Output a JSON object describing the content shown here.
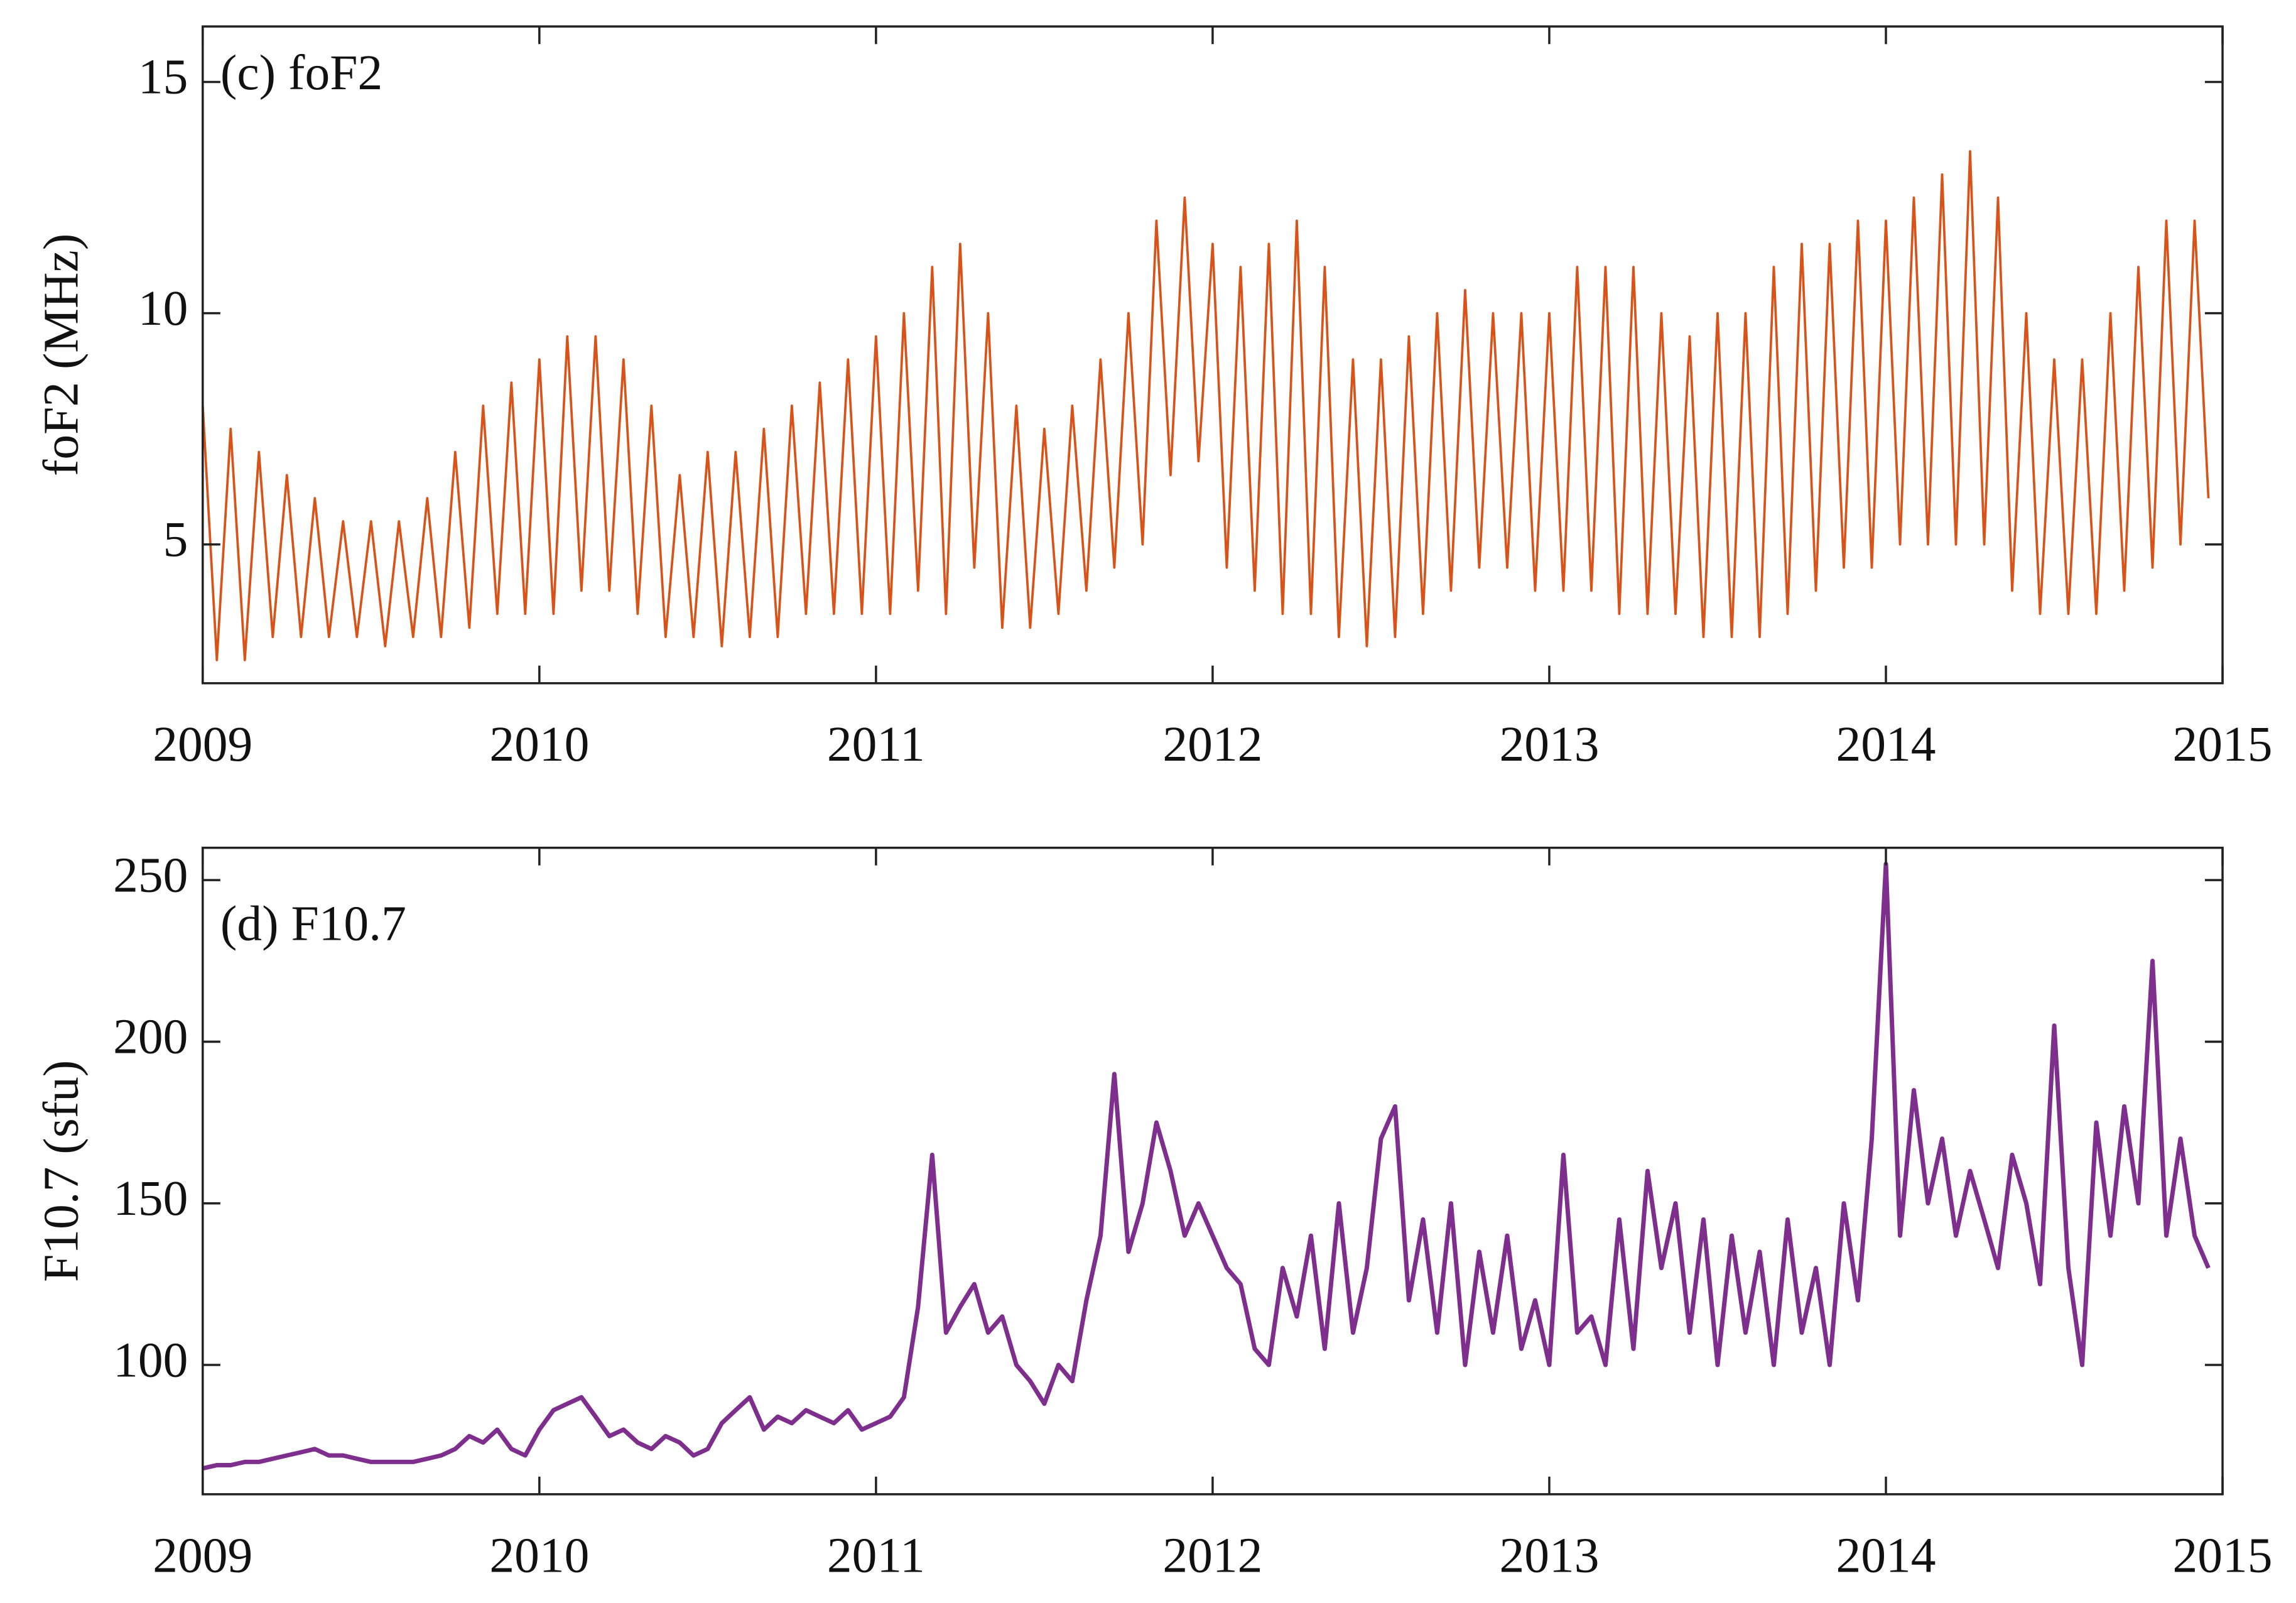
{
  "charts": [
    {
      "chart_data": {
        "type": "line",
        "title": "(c) foF2",
        "ylabel": "foF2 (MHz)",
        "color": "#d95319",
        "x": [
          2009,
          2009.042,
          2009.083,
          2009.125,
          2009.167,
          2009.208,
          2009.25,
          2009.292,
          2009.333,
          2009.375,
          2009.417,
          2009.458,
          2009.5,
          2009.542,
          2009.583,
          2009.625,
          2009.667,
          2009.708,
          2009.75,
          2009.792,
          2009.833,
          2009.875,
          2009.917,
          2009.958,
          2010,
          2010.042,
          2010.083,
          2010.125,
          2010.167,
          2010.208,
          2010.25,
          2010.292,
          2010.333,
          2010.375,
          2010.417,
          2010.458,
          2010.5,
          2010.542,
          2010.583,
          2010.625,
          2010.667,
          2010.708,
          2010.75,
          2010.792,
          2010.833,
          2010.875,
          2010.917,
          2010.958,
          2011,
          2011.042,
          2011.083,
          2011.125,
          2011.167,
          2011.208,
          2011.25,
          2011.292,
          2011.333,
          2011.375,
          2011.417,
          2011.458,
          2011.5,
          2011.542,
          2011.583,
          2011.625,
          2011.667,
          2011.708,
          2011.75,
          2011.792,
          2011.833,
          2011.875,
          2011.917,
          2011.958,
          2012,
          2012.042,
          2012.083,
          2012.125,
          2012.167,
          2012.208,
          2012.25,
          2012.292,
          2012.333,
          2012.375,
          2012.417,
          2012.458,
          2012.5,
          2012.542,
          2012.583,
          2012.625,
          2012.667,
          2012.708,
          2012.75,
          2012.792,
          2012.833,
          2012.875,
          2012.917,
          2012.958,
          2013,
          2013.042,
          2013.083,
          2013.125,
          2013.167,
          2013.208,
          2013.25,
          2013.292,
          2013.333,
          2013.375,
          2013.417,
          2013.458,
          2013.5,
          2013.542,
          2013.583,
          2013.625,
          2013.667,
          2013.708,
          2013.75,
          2013.792,
          2013.833,
          2013.875,
          2013.917,
          2013.958,
          2014,
          2014.042,
          2014.083,
          2014.125,
          2014.167,
          2014.208,
          2014.25,
          2014.292,
          2014.333,
          2014.375,
          2014.417,
          2014.458,
          2014.5,
          2014.542,
          2014.583,
          2014.625,
          2014.667,
          2014.708,
          2014.75,
          2014.792,
          2014.833,
          2014.875,
          2014.917,
          2014.958
        ],
        "values": [
          8,
          2.5,
          7.5,
          2.5,
          7,
          3,
          6.5,
          3,
          6,
          3,
          5.5,
          3,
          5.5,
          2.8,
          5.5,
          3,
          6,
          3,
          7,
          3.2,
          8,
          3.5,
          8.5,
          3.5,
          9,
          3.5,
          9.5,
          4,
          9.5,
          4,
          9,
          3.5,
          8,
          3,
          6.5,
          3,
          7,
          2.8,
          7,
          3,
          7.5,
          3,
          8,
          3.5,
          8.5,
          3.5,
          9,
          3.5,
          9.5,
          3.5,
          10,
          4,
          11,
          3.5,
          11.5,
          4.5,
          10,
          3.2,
          8,
          3.2,
          7.5,
          3.5,
          8,
          4,
          9,
          4.5,
          10,
          5,
          12,
          6.5,
          12.5,
          6.8,
          11.5,
          4.5,
          11,
          4,
          11.5,
          3.5,
          12,
          3.5,
          11,
          3,
          9,
          2.8,
          9,
          3,
          9.5,
          3.5,
          10,
          4,
          10.5,
          4.5,
          10,
          4.5,
          10,
          4,
          10,
          4,
          11,
          4,
          11,
          3.5,
          11,
          3.5,
          10,
          3.5,
          9.5,
          3,
          10,
          3,
          10,
          3,
          11,
          3.5,
          11.5,
          4,
          11.5,
          4.5,
          12,
          4.5,
          12,
          5,
          12.5,
          5,
          13,
          5,
          13.5,
          5,
          12.5,
          4,
          10,
          3.5,
          9,
          3.5,
          9,
          3.5,
          10,
          4,
          11,
          4.5,
          12,
          5,
          12,
          6
        ],
        "xlim": [
          2009,
          2015
        ],
        "xticks": [
          2009,
          2010,
          2011,
          2012,
          2013,
          2014,
          2015
        ],
        "ylim": [
          2,
          16.2
        ],
        "yticks": [
          5,
          10,
          15
        ]
      }
    },
    {
      "chart_data": {
        "type": "line",
        "title": "(d) F10.7",
        "ylabel": "F10.7 (sfu)",
        "color": "#7e2f8e",
        "x": [
          2009,
          2009.042,
          2009.083,
          2009.125,
          2009.167,
          2009.208,
          2009.25,
          2009.292,
          2009.333,
          2009.375,
          2009.417,
          2009.458,
          2009.5,
          2009.542,
          2009.583,
          2009.625,
          2009.667,
          2009.708,
          2009.75,
          2009.792,
          2009.833,
          2009.875,
          2009.917,
          2009.958,
          2010,
          2010.042,
          2010.083,
          2010.125,
          2010.167,
          2010.208,
          2010.25,
          2010.292,
          2010.333,
          2010.375,
          2010.417,
          2010.458,
          2010.5,
          2010.542,
          2010.583,
          2010.625,
          2010.667,
          2010.708,
          2010.75,
          2010.792,
          2010.833,
          2010.875,
          2010.917,
          2010.958,
          2011,
          2011.042,
          2011.083,
          2011.125,
          2011.167,
          2011.208,
          2011.25,
          2011.292,
          2011.333,
          2011.375,
          2011.417,
          2011.458,
          2011.5,
          2011.542,
          2011.583,
          2011.625,
          2011.667,
          2011.708,
          2011.75,
          2011.792,
          2011.833,
          2011.875,
          2011.917,
          2011.958,
          2012,
          2012.042,
          2012.083,
          2012.125,
          2012.167,
          2012.208,
          2012.25,
          2012.292,
          2012.333,
          2012.375,
          2012.417,
          2012.458,
          2012.5,
          2012.542,
          2012.583,
          2012.625,
          2012.667,
          2012.708,
          2012.75,
          2012.792,
          2012.833,
          2012.875,
          2012.917,
          2012.958,
          2013,
          2013.042,
          2013.083,
          2013.125,
          2013.167,
          2013.208,
          2013.25,
          2013.292,
          2013.333,
          2013.375,
          2013.417,
          2013.458,
          2013.5,
          2013.542,
          2013.583,
          2013.625,
          2013.667,
          2013.708,
          2013.75,
          2013.792,
          2013.833,
          2013.875,
          2013.917,
          2013.958,
          2014,
          2014.042,
          2014.083,
          2014.125,
          2014.167,
          2014.208,
          2014.25,
          2014.292,
          2014.333,
          2014.375,
          2014.417,
          2014.458,
          2014.5,
          2014.542,
          2014.583,
          2014.625,
          2014.667,
          2014.708,
          2014.75,
          2014.792,
          2014.833,
          2014.875,
          2014.917,
          2014.958
        ],
        "values": [
          68,
          69,
          69,
          70,
          70,
          71,
          72,
          73,
          74,
          72,
          72,
          71,
          70,
          70,
          70,
          70,
          71,
          72,
          74,
          78,
          76,
          80,
          74,
          72,
          80,
          86,
          88,
          90,
          84,
          78,
          80,
          76,
          74,
          78,
          76,
          72,
          74,
          82,
          86,
          90,
          80,
          84,
          82,
          86,
          84,
          82,
          86,
          80,
          82,
          84,
          90,
          118,
          165,
          110,
          118,
          125,
          110,
          115,
          100,
          95,
          88,
          100,
          95,
          120,
          140,
          190,
          135,
          150,
          175,
          160,
          140,
          150,
          140,
          130,
          125,
          105,
          100,
          130,
          115,
          140,
          105,
          150,
          110,
          130,
          170,
          180,
          120,
          145,
          110,
          150,
          100,
          135,
          110,
          140,
          105,
          120,
          100,
          165,
          110,
          115,
          100,
          145,
          105,
          160,
          130,
          150,
          110,
          145,
          100,
          140,
          110,
          135,
          100,
          145,
          110,
          130,
          100,
          150,
          120,
          170,
          255,
          140,
          185,
          150,
          170,
          140,
          160,
          145,
          130,
          165,
          150,
          125,
          205,
          130,
          100,
          175,
          140,
          180,
          150,
          225,
          140,
          170,
          140,
          130
        ],
        "xlim": [
          2009,
          2015
        ],
        "xticks": [
          2009,
          2010,
          2011,
          2012,
          2013,
          2014,
          2015
        ],
        "ylim": [
          60,
          260
        ],
        "yticks": [
          100,
          150,
          200,
          250
        ]
      }
    }
  ]
}
